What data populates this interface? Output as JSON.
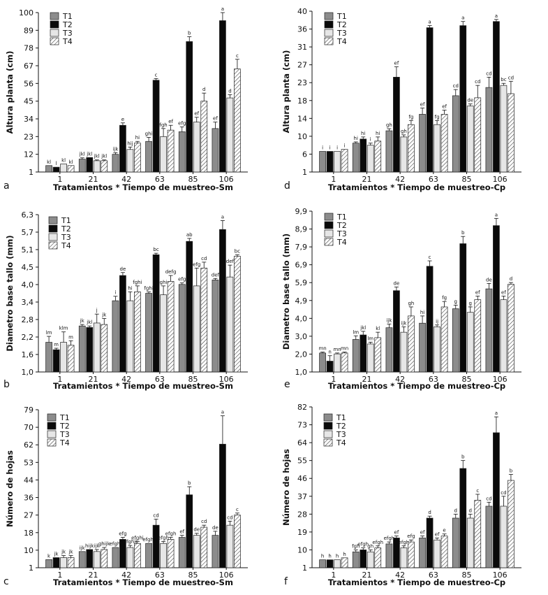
{
  "series_names": [
    "T1",
    "T2",
    "T3",
    "T4"
  ],
  "series_colors": [
    "#8c8c8c",
    "#0a0a0a",
    "#e6e6e6",
    "#ffffff"
  ],
  "series_hatch": [
    false,
    false,
    false,
    true
  ],
  "chart_data": [
    {
      "panel": "a",
      "type": "bar",
      "xlabel": "Tratamientos * Tiempo de muestreo-Sm",
      "ylabel": "Altura planta (cm)",
      "categories": [
        "1",
        "21",
        "42",
        "63",
        "85",
        "106"
      ],
      "ylim": [
        1,
        100
      ],
      "yticks": [
        "1",
        "12",
        "23",
        "34",
        "45",
        "56",
        "67",
        "78",
        "89",
        "100"
      ],
      "series": [
        {
          "name": "T1",
          "values": [
            5,
            9,
            12,
            20,
            26,
            28
          ],
          "errors": [
            0,
            0.8,
            1,
            2.5,
            3,
            4
          ],
          "labels": [
            "kl",
            "jkl",
            "ijk",
            "ghi",
            "efg",
            "ef"
          ]
        },
        {
          "name": "T2",
          "values": [
            4,
            10,
            30,
            58,
            82,
            95
          ],
          "errors": [
            0,
            0,
            1.5,
            1,
            3,
            5
          ],
          "labels": [
            "l",
            "jkl",
            "e",
            "c",
            "b",
            "a"
          ]
        },
        {
          "name": "T3",
          "values": [
            6,
            8,
            15,
            23,
            32,
            47
          ],
          "errors": [
            0,
            0.5,
            1.5,
            5,
            3,
            2
          ],
          "labels": [
            "kl",
            "jkl",
            "hij",
            "fgh",
            "ef",
            "d"
          ]
        },
        {
          "name": "T4",
          "values": [
            5,
            8,
            19,
            27,
            45,
            65
          ],
          "errors": [
            0,
            0.5,
            1,
            3,
            5,
            6
          ],
          "labels": [
            "kl",
            "jkl",
            "hi",
            "ef",
            "d",
            "c"
          ]
        }
      ]
    },
    {
      "panel": "d",
      "type": "bar",
      "xlabel": "Tratamientos * Tiempo de muestreo-Cp",
      "ylabel": "Altura planta (cm)",
      "categories": [
        "1",
        "21",
        "42",
        "63",
        "85",
        "106"
      ],
      "ylim": [
        1,
        40
      ],
      "yticks": [
        "1",
        "6",
        "10",
        "14",
        "18",
        "23",
        "27",
        "31",
        "36",
        "40"
      ],
      "series": [
        {
          "name": "T1",
          "values": [
            6,
            8,
            11,
            15,
            19.5,
            21.5
          ],
          "errors": [
            0,
            0.3,
            0.5,
            1.5,
            1.5,
            2.5
          ],
          "labels": [
            "i",
            "hi",
            "gh",
            "ef",
            "cd",
            "cd"
          ]
        },
        {
          "name": "T2",
          "values": [
            6,
            9,
            24,
            36,
            36.5,
            37.5
          ],
          "errors": [
            0,
            0.5,
            2.5,
            0.5,
            1,
            0.5
          ],
          "labels": [
            "i",
            "hi",
            "ef",
            "a",
            "a",
            "a"
          ]
        },
        {
          "name": "T3",
          "values": [
            6,
            7.5,
            9.5,
            12.5,
            17,
            22
          ],
          "errors": [
            0,
            0.5,
            0.5,
            1,
            0.5,
            0.5
          ],
          "labels": [
            "i",
            "i",
            "gh",
            "fg",
            "de",
            "bc"
          ]
        },
        {
          "name": "T4",
          "values": [
            6.5,
            8.5,
            12.5,
            15,
            19,
            20
          ],
          "errors": [
            0,
            1,
            1,
            1,
            3,
            3
          ],
          "labels": [
            "i",
            "hi",
            "fg",
            "ef",
            "cd",
            "cd"
          ]
        }
      ]
    },
    {
      "panel": "b",
      "type": "bar",
      "xlabel": "Tratamientos * Tiempo de muestreo-Sm",
      "ylabel": "Diametro base tallo (mm)",
      "categories": [
        "1",
        "21",
        "42",
        "63",
        "85",
        "106"
      ],
      "ylim": [
        1.0,
        6.3
      ],
      "yticks": [
        "1,0",
        "1,6",
        "2,2",
        "2,8",
        "3,4",
        "4,0",
        "4,5",
        "5,1",
        "5,7",
        "6,3"
      ],
      "series": [
        {
          "name": "T1",
          "values": [
            2.0,
            2.55,
            3.4,
            3.65,
            3.95,
            4.1
          ],
          "errors": [
            0.2,
            0.05,
            0.15,
            0.05,
            0.05,
            0.05
          ],
          "labels": [
            "lm",
            "jk",
            "i",
            "fghi",
            "efg",
            "def"
          ]
        },
        {
          "name": "T2",
          "values": [
            1.75,
            2.5,
            4.25,
            4.95,
            5.4,
            5.8
          ],
          "errors": [
            0.05,
            0.05,
            0.1,
            0.05,
            0.1,
            0.3
          ],
          "labels": [
            "m",
            "jkl",
            "de",
            "bc",
            "ab",
            "a"
          ]
        },
        {
          "name": "T3",
          "values": [
            2.0,
            2.65,
            3.4,
            3.6,
            3.9,
            4.2
          ],
          "errors": [
            0.35,
            0.3,
            0.3,
            0.3,
            0.6,
            0.4
          ],
          "labels": [
            "klm",
            "j",
            "hi",
            "ghi",
            "efg",
            "def"
          ]
        },
        {
          "name": "T4",
          "values": [
            1.9,
            2.6,
            3.7,
            4.05,
            4.5,
            4.9
          ],
          "errors": [
            0.15,
            0.2,
            0.2,
            0.2,
            0.2,
            0.05
          ],
          "labels": [
            "m",
            "jk",
            "fghi",
            "defg",
            "cd",
            "bc"
          ]
        }
      ]
    },
    {
      "panel": "e",
      "type": "bar",
      "xlabel": "Tratamientos * Tiempo de muestreo-Cp",
      "ylabel": "Diametro base tallo (mm)",
      "categories": [
        "1",
        "21",
        "42",
        "63",
        "85",
        "106"
      ],
      "ylim": [
        1.0,
        9.9
      ],
      "yticks": [
        "1,0",
        "2,0",
        "3,0",
        "4,0",
        "4,9",
        "5,9",
        "6,9",
        "7,9",
        "8,9",
        "9,9"
      ],
      "series": [
        {
          "name": "T1",
          "values": [
            2.05,
            2.8,
            3.45,
            3.7,
            4.5,
            5.6
          ],
          "errors": [
            0.05,
            0.2,
            0.2,
            0.4,
            0.2,
            0.3
          ],
          "labels": [
            "mn",
            "lm",
            "ijk",
            "hi",
            "g",
            "de"
          ]
        },
        {
          "name": "T2",
          "values": [
            1.6,
            3.05,
            5.5,
            6.85,
            8.1,
            9.1
          ],
          "errors": [
            0.3,
            0.2,
            0.2,
            0.3,
            0.4,
            0.4
          ],
          "labels": [
            "n",
            "jkl",
            "de",
            "c",
            "b",
            "a"
          ]
        },
        {
          "name": "T3",
          "values": [
            2.0,
            2.55,
            3.2,
            3.5,
            4.3,
            5.0
          ],
          "errors": [
            0.05,
            0.1,
            0.3,
            0.1,
            0.3,
            0.2
          ],
          "labels": [
            "mn",
            "lm",
            "ijk",
            "ij",
            "g",
            "ef"
          ]
        },
        {
          "name": "T4",
          "values": [
            2.05,
            2.9,
            4.1,
            4.6,
            5.0,
            5.85
          ],
          "errors": [
            0.05,
            0.3,
            0.5,
            0.3,
            0.2,
            0.1
          ],
          "labels": [
            "mn",
            "kl",
            "gh",
            "fg",
            "ef",
            "d"
          ]
        }
      ]
    },
    {
      "panel": "c",
      "type": "bar",
      "xlabel": "Tratamientos * Tiempo de muestreo-Sm",
      "ylabel": "Número de hojas",
      "categories": [
        "1",
        "21",
        "42",
        "63",
        "85",
        "106"
      ],
      "ylim": [
        1,
        79
      ],
      "yticks": [
        "1",
        "10",
        "18",
        "27",
        "36",
        "44",
        "53",
        "62",
        "70",
        "79"
      ],
      "series": [
        {
          "name": "T1",
          "values": [
            5,
            9,
            11,
            13,
            16,
            17
          ],
          "errors": [
            0,
            0,
            0,
            0,
            1,
            2
          ],
          "labels": [
            "k",
            "ijk",
            "efghi",
            "efghi",
            "ef",
            "de"
          ]
        },
        {
          "name": "T2",
          "values": [
            6,
            10,
            15,
            22,
            37,
            62
          ],
          "errors": [
            0,
            0,
            1,
            3,
            4,
            14
          ],
          "labels": [
            "jk",
            "hijk",
            "efg",
            "cd",
            "b",
            "a"
          ]
        },
        {
          "name": "T3",
          "values": [
            6,
            9,
            11,
            13,
            17,
            22
          ],
          "errors": [
            1,
            1,
            1,
            1,
            1,
            2
          ],
          "labels": [
            "jk",
            "ijk",
            "efghij",
            "efgh",
            "de",
            "cd"
          ]
        },
        {
          "name": "T4",
          "values": [
            6,
            10,
            13,
            15,
            21,
            27
          ],
          "errors": [
            1,
            1,
            1,
            1,
            1,
            1
          ],
          "labels": [
            "jk",
            "ghijk",
            "efghi",
            "efgh",
            "cd",
            "c"
          ]
        }
      ]
    },
    {
      "panel": "f",
      "type": "bar",
      "xlabel": "Tratamientos * Tiempo de muestreo-Cp",
      "ylabel": "Número de hojas",
      "categories": [
        "1",
        "21",
        "42",
        "63",
        "85",
        "106"
      ],
      "ylim": [
        1,
        82
      ],
      "yticks": [
        "1",
        "10",
        "19",
        "28",
        "37",
        "46",
        "55",
        "64",
        "73",
        "82"
      ],
      "series": [
        {
          "name": "T1",
          "values": [
            5,
            9,
            13,
            16,
            26,
            32
          ],
          "errors": [
            0,
            1,
            1,
            1,
            2,
            2
          ],
          "labels": [
            "h",
            "fgh",
            "efgh",
            "ef",
            "d",
            "cd"
          ]
        },
        {
          "name": "T2",
          "values": [
            5,
            10,
            16,
            26,
            51,
            69
          ],
          "errors": [
            0,
            1,
            1,
            1,
            4,
            8
          ],
          "labels": [
            "h",
            "efgh",
            "ef",
            "d",
            "b",
            "a"
          ]
        },
        {
          "name": "T3",
          "values": [
            5,
            9,
            11,
            15,
            26,
            32
          ],
          "errors": [
            0,
            1,
            1,
            1,
            2,
            5
          ],
          "labels": [
            "h",
            "gh",
            "efgh",
            "ef",
            "d",
            "cd"
          ]
        },
        {
          "name": "T4",
          "values": [
            6,
            11,
            14,
            17,
            35,
            45
          ],
          "errors": [
            0,
            1,
            1,
            1,
            3,
            3
          ],
          "labels": [
            "h",
            "efgh",
            "efg",
            "e",
            "c",
            "b"
          ]
        }
      ]
    }
  ]
}
